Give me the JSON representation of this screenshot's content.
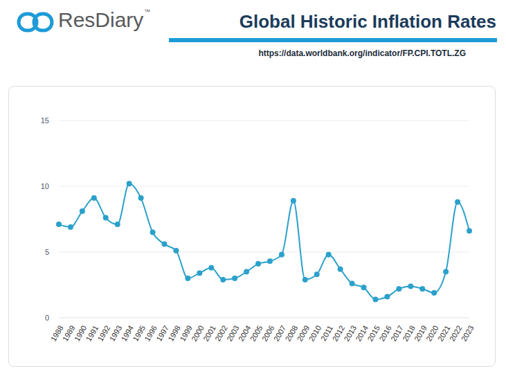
{
  "header": {
    "brand": "ResDiary",
    "trademark": "™"
  },
  "chart_data": {
    "type": "line",
    "title": "Global Historic Inflation Rates",
    "source": "https://data.worldbank.org/indicator/FP.CPI.TOTL.ZG",
    "categories": [
      "1988",
      "1989",
      "1990",
      "1991",
      "1992",
      "1993",
      "1994",
      "1995",
      "1996",
      "1997",
      "1998",
      "1999",
      "2000",
      "2001",
      "2002",
      "2003",
      "2004",
      "2005",
      "2006",
      "2007",
      "2008",
      "2009",
      "2010",
      "2011",
      "2012",
      "2013",
      "2014",
      "2015",
      "2016",
      "2017",
      "2018",
      "2019",
      "2020",
      "2021",
      "2022",
      "2023"
    ],
    "values": [
      7.1,
      6.9,
      8.1,
      9.1,
      7.6,
      7.1,
      10.2,
      9.1,
      6.5,
      5.6,
      5.1,
      3.0,
      3.4,
      3.8,
      2.9,
      3.0,
      3.5,
      4.1,
      4.3,
      4.8,
      8.9,
      2.9,
      3.3,
      4.8,
      3.7,
      2.6,
      2.3,
      1.4,
      1.6,
      2.2,
      2.4,
      2.2,
      1.9,
      3.5,
      8.8,
      6.6
    ],
    "color": "#2ba1cb",
    "marker": "circle",
    "line_style": "solid",
    "ylim": [
      0,
      15
    ],
    "yticks": [
      0,
      5,
      10,
      15
    ],
    "grid": true
  }
}
